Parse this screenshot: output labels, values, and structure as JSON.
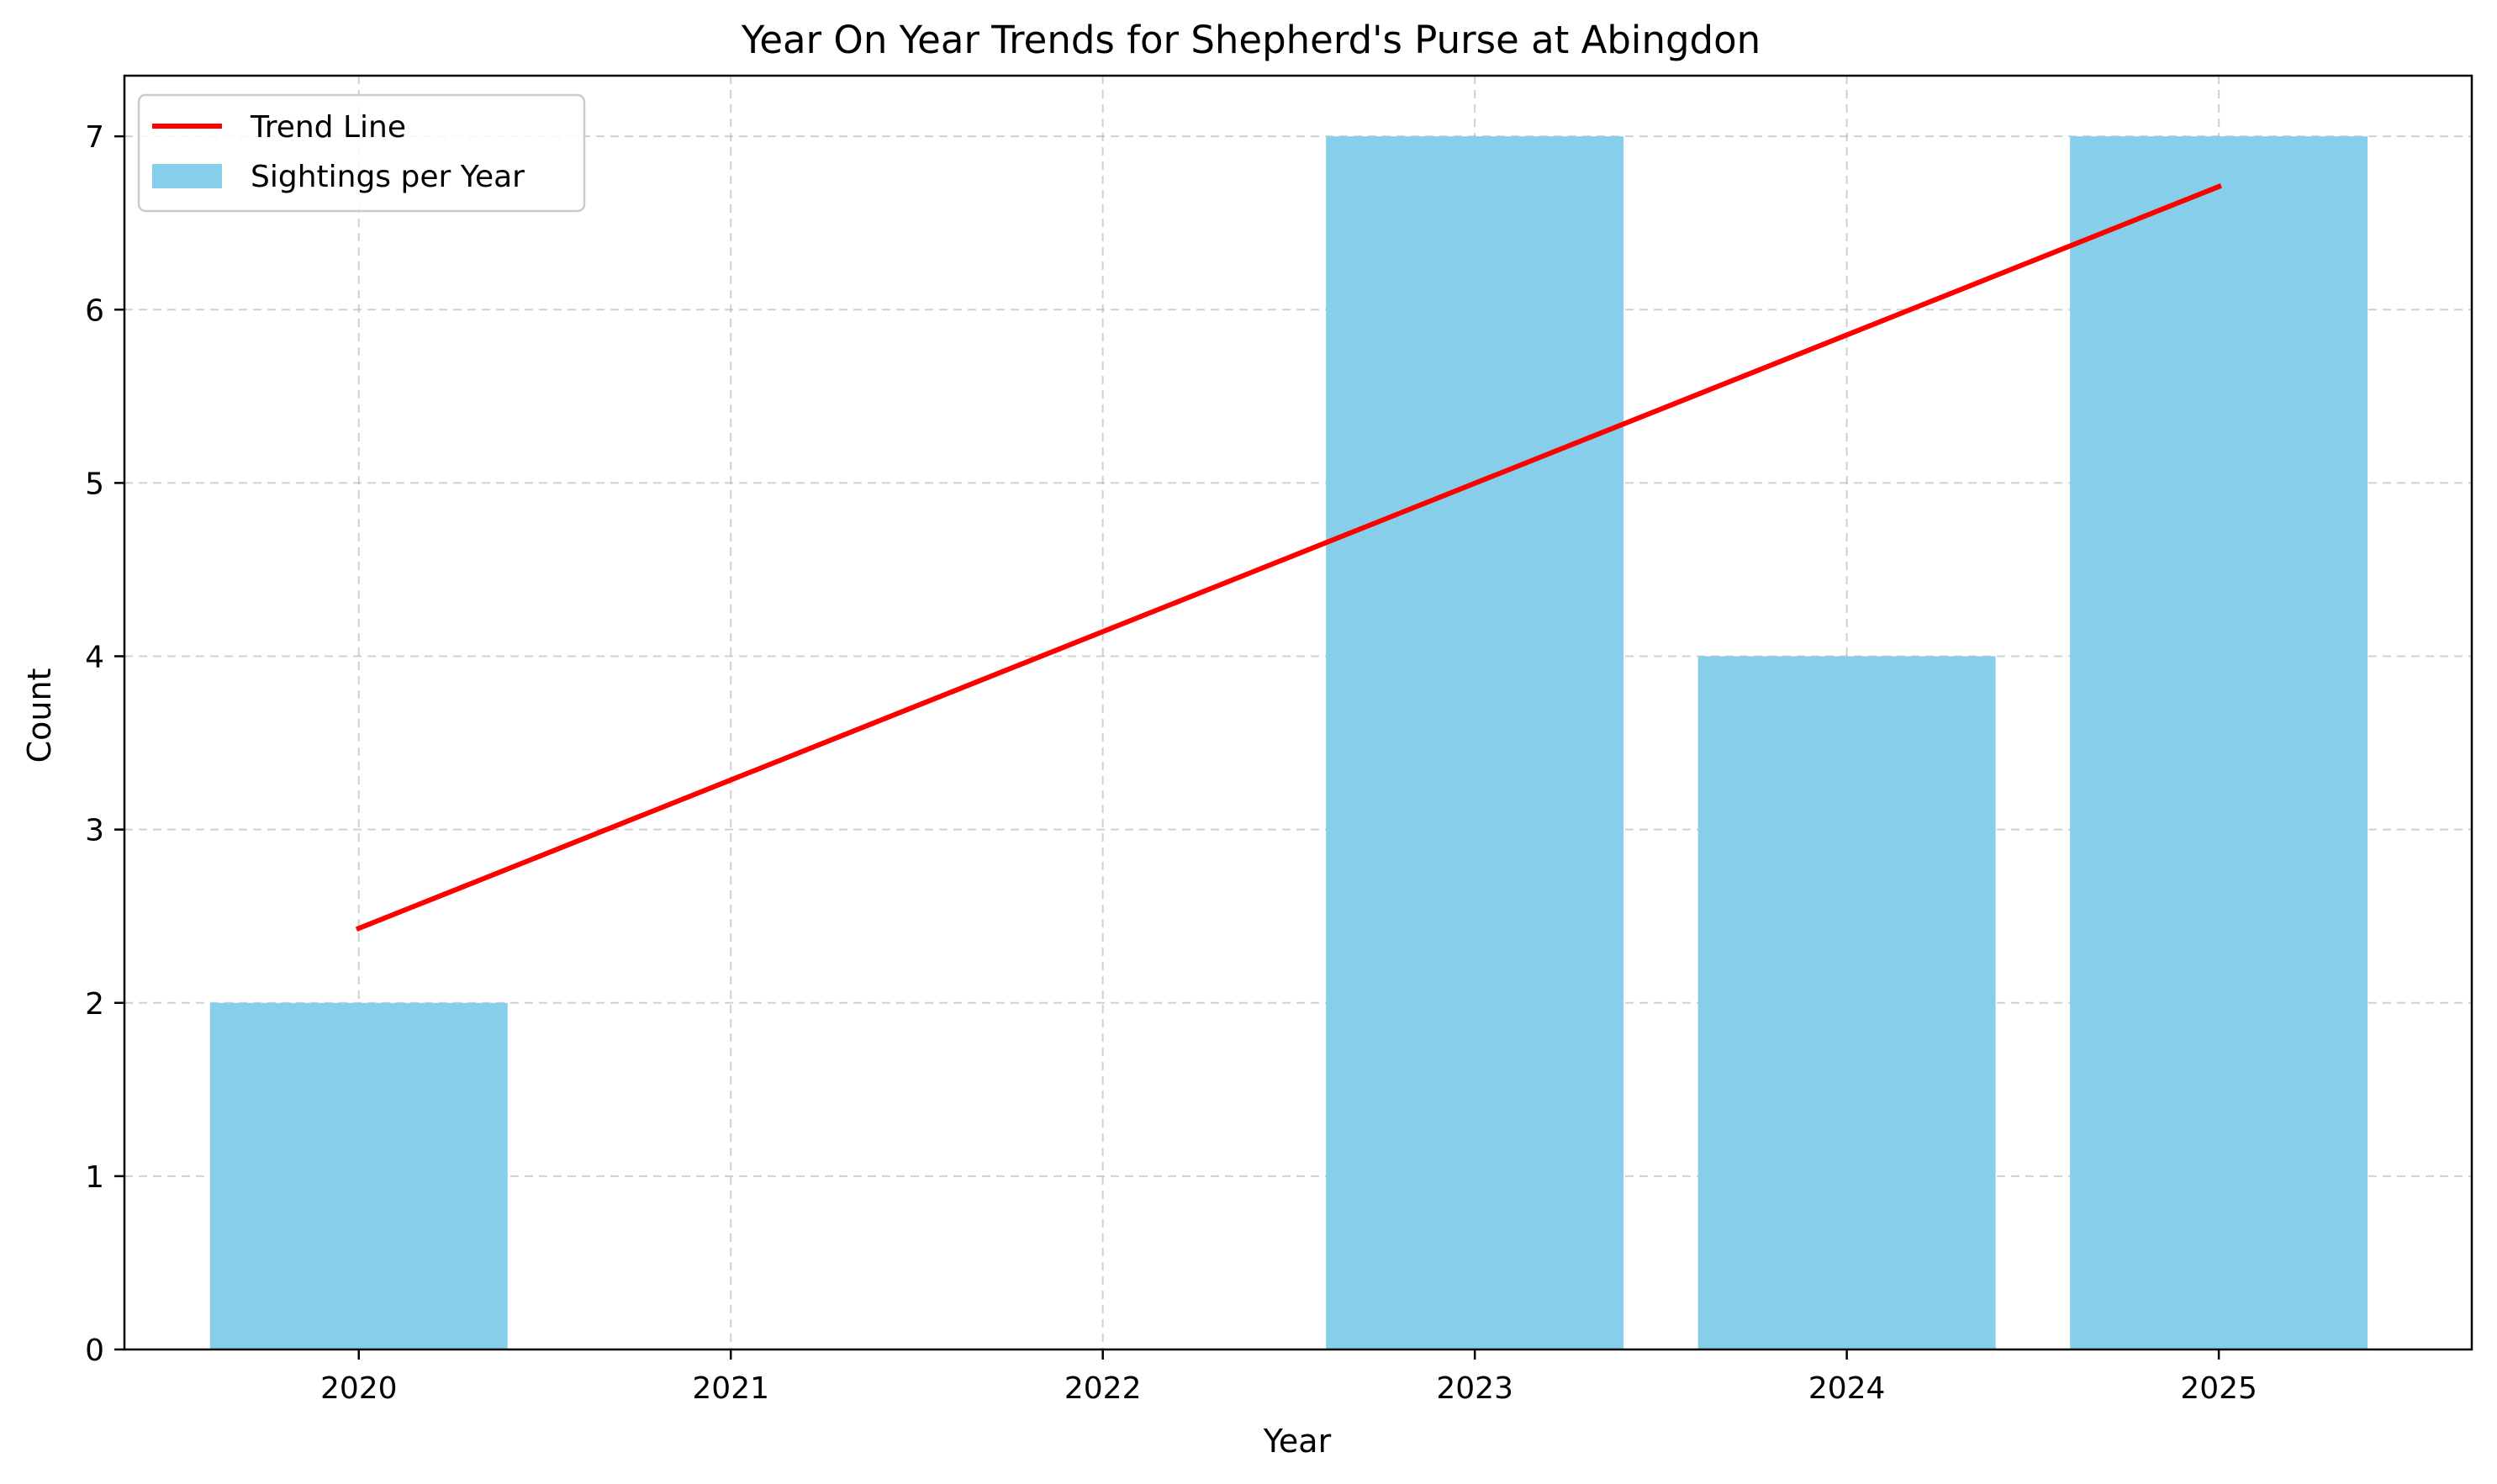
{
  "chart_data": {
    "type": "bar",
    "title": "Year On Year Trends for Shepherd's Purse at Abingdon",
    "xlabel": "Year",
    "ylabel": "Count",
    "categories": [
      "2020",
      "2021",
      "2022",
      "2023",
      "2024",
      "2025"
    ],
    "series": [
      {
        "name": "Sightings per Year",
        "type": "bar",
        "color": "#87CEEB",
        "values": [
          2,
          0,
          0,
          7,
          4,
          7
        ]
      },
      {
        "name": "Trend Line",
        "type": "line",
        "color": "#FF0000",
        "x": [
          2020,
          2025
        ],
        "values": [
          2.43,
          6.71
        ]
      }
    ],
    "xlim": [
      2019.37,
      2025.68
    ],
    "ylim": [
      0,
      7.35
    ],
    "yticks": [
      0,
      1,
      2,
      3,
      4,
      5,
      6,
      7
    ],
    "grid": true,
    "legend": "top-left"
  }
}
